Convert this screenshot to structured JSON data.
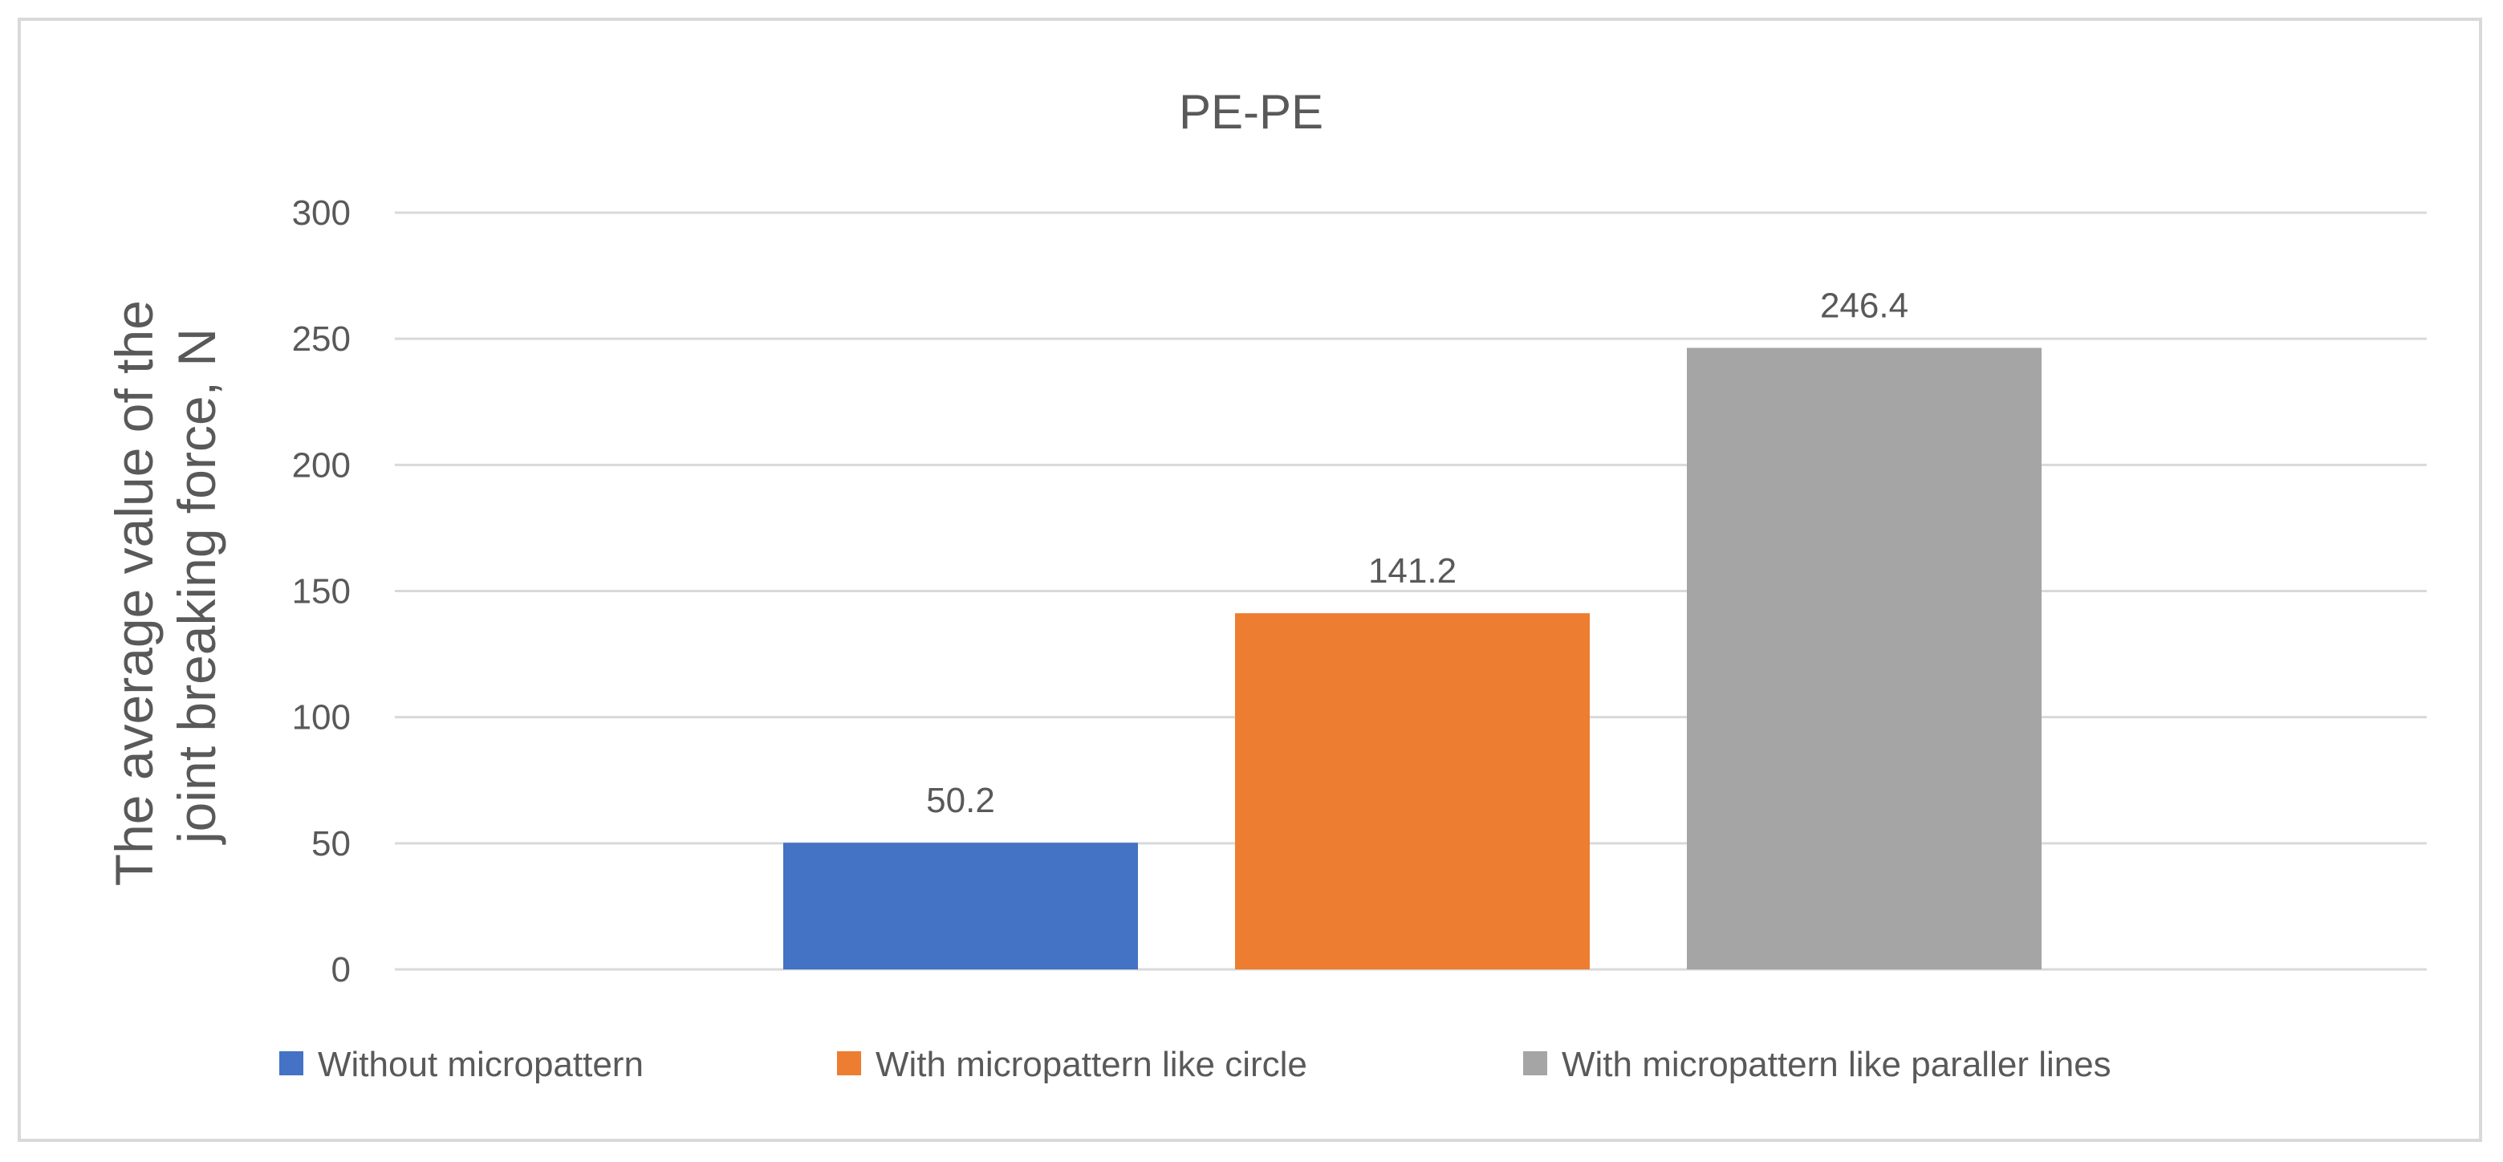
{
  "chart_data": {
    "type": "bar",
    "title": "PE-PE",
    "categories": [
      "Without micropattern",
      "With micropattern like circle",
      "With micropattern like paraller lines"
    ],
    "series": [
      {
        "name": "Without micropattern",
        "value": 50.2,
        "value_label": "50.2",
        "color": "#4472c4"
      },
      {
        "name": "With micropattern like circle",
        "value": 141.2,
        "value_label": "141.2",
        "color": "#ed7d31"
      },
      {
        "name": "With micropattern like paraller lines",
        "value": 246.4,
        "value_label": "246.4",
        "color": "#a5a5a5"
      }
    ],
    "ylabel_lines": [
      "The average value of the",
      "joint breaking force, N"
    ],
    "xlabel": "",
    "ylim": [
      0,
      300
    ],
    "yticks": [
      0,
      50,
      100,
      150,
      200,
      250,
      300
    ],
    "grid": true,
    "legend_position": "bottom"
  }
}
